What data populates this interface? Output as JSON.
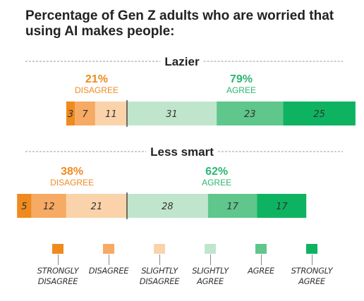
{
  "title": "Percentage of Gen Z adults who are worried that using AI makes people:",
  "chart_data": {
    "type": "bar",
    "stacked": true,
    "orientation": "horizontal",
    "title": "Percentage of Gen Z adults who are worried that using AI makes people:",
    "categories": [
      "STRONGLY DISAGREE",
      "DISAGREE",
      "SLIGHTLY DISAGREE",
      "SLIGHTLY AGREE",
      "AGREE",
      "STRONGLY AGREE"
    ],
    "colors": [
      "#f08a1e",
      "#f6aa63",
      "#fbd3aa",
      "#bfe6cc",
      "#5fc68c",
      "#0db361"
    ],
    "rows": [
      {
        "label": "Lazier",
        "values": [
          3,
          7,
          11,
          31,
          23,
          25
        ],
        "disagree_pct": "21%",
        "disagree_label": "DISAGREE",
        "agree_pct": "79%",
        "agree_label": "AGREE"
      },
      {
        "label": "Less smart",
        "values": [
          5,
          12,
          21,
          28,
          17,
          17
        ],
        "disagree_pct": "38%",
        "disagree_label": "DISAGREE",
        "agree_pct": "62%",
        "agree_label": "AGREE"
      }
    ],
    "disagree_color": "#f08a1e",
    "agree_color": "#2bb673"
  },
  "legend": [
    {
      "label": "STRONGLY\nDISAGREE",
      "color": "#f08a1e"
    },
    {
      "label": "DISAGREE",
      "color": "#f6aa63"
    },
    {
      "label": "SLIGHTLY\nDISAGREE",
      "color": "#fbd3aa"
    },
    {
      "label": "SLIGHTLY\nAGREE",
      "color": "#bfe6cc"
    },
    {
      "label": "AGREE",
      "color": "#5fc68c"
    },
    {
      "label": "STRONGLY\nAGREE",
      "color": "#0db361"
    }
  ]
}
